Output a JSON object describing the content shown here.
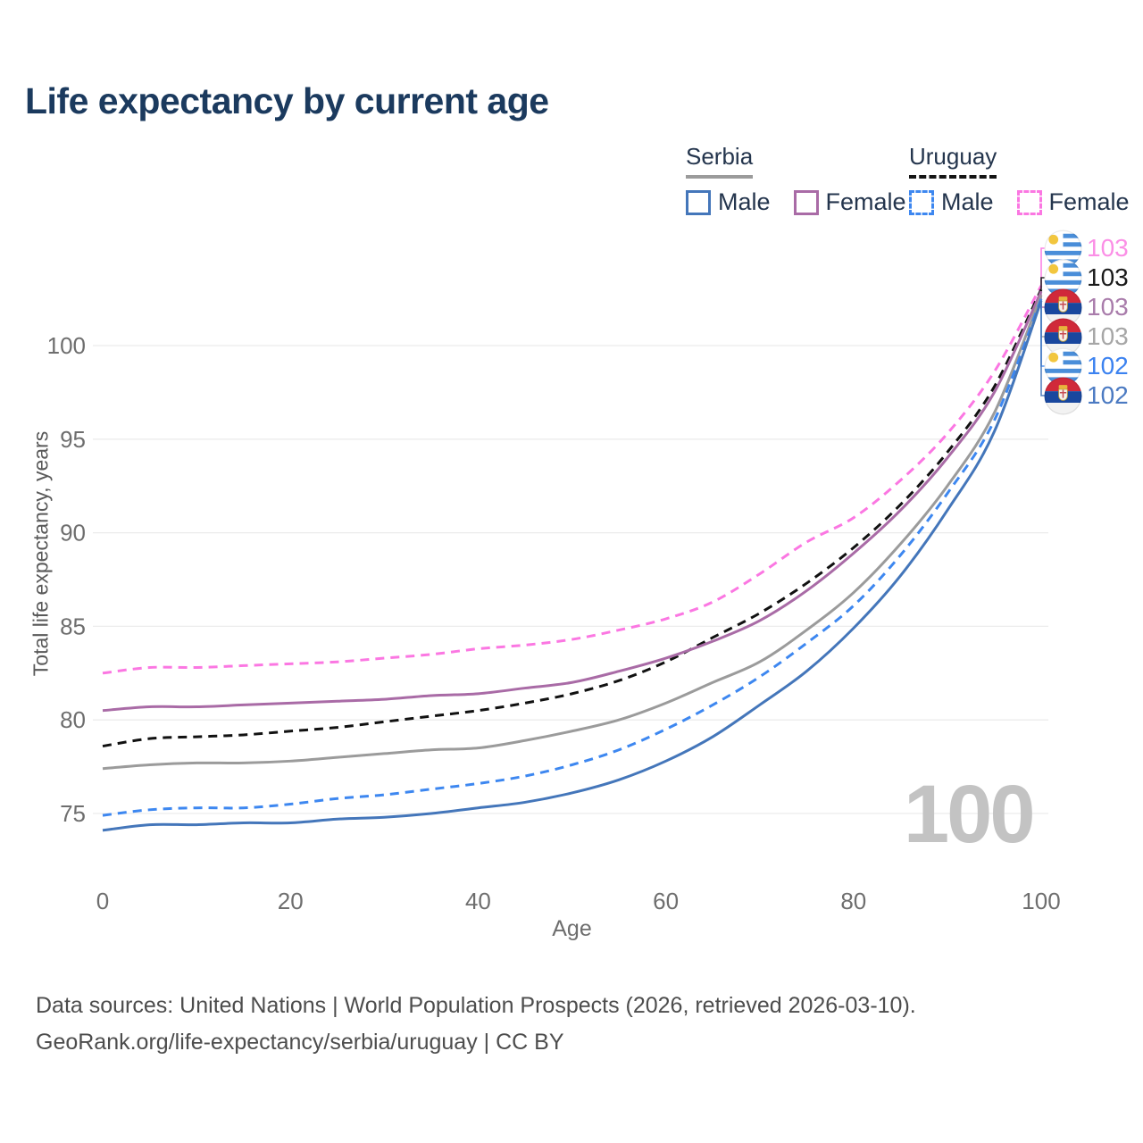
{
  "title": "Life expectancy by current age",
  "watermark": "100",
  "legend": {
    "groups": [
      {
        "country": "Serbia",
        "line_style": "solid",
        "underline_color": "#9b9b9b",
        "items": [
          {
            "label": "Male",
            "color": "#4476ba",
            "dashed": false
          },
          {
            "label": "Female",
            "color": "#a96ba6",
            "dashed": false
          }
        ]
      },
      {
        "country": "Uruguay",
        "line_style": "dashed",
        "underline_color": "#141414",
        "items": [
          {
            "label": "Male",
            "color": "#3d87f0",
            "dashed": true
          },
          {
            "label": "Female",
            "color": "#fb77e2",
            "dashed": true
          }
        ]
      }
    ]
  },
  "chart_data": {
    "type": "line",
    "title": "Life expectancy by current age",
    "xlabel": "Age",
    "ylabel": "Total life expectancy, years",
    "xlim": [
      0,
      100
    ],
    "ylim": [
      73.5,
      104.5
    ],
    "x_ticks": [
      0,
      20,
      40,
      60,
      80,
      100
    ],
    "y_ticks": [
      75,
      80,
      85,
      90,
      95,
      100
    ],
    "grid": "horizontal gridlines only",
    "legend_position": "top-right",
    "x": [
      0,
      5,
      10,
      15,
      20,
      25,
      30,
      35,
      40,
      45,
      50,
      55,
      60,
      65,
      70,
      75,
      80,
      85,
      90,
      95,
      100
    ],
    "series": [
      {
        "key": "uy_female",
        "name": "Uruguay Female",
        "country": "Uruguay",
        "dashed": true,
        "color": "#fb77e2",
        "end_label": "103",
        "values": [
          82.5,
          82.8,
          82.8,
          82.9,
          83.0,
          83.1,
          83.3,
          83.5,
          83.8,
          84.0,
          84.3,
          84.8,
          85.4,
          86.3,
          87.8,
          89.5,
          90.8,
          92.8,
          95.3,
          98.6,
          103.2
        ]
      },
      {
        "key": "uy_avg",
        "name": "Uruguay",
        "country": "Uruguay",
        "dashed": true,
        "color": "#111111",
        "end_label": "103",
        "values": [
          78.6,
          79.0,
          79.1,
          79.2,
          79.4,
          79.6,
          79.9,
          80.2,
          80.5,
          80.9,
          81.4,
          82.1,
          83.1,
          84.4,
          85.7,
          87.3,
          89.2,
          91.5,
          94.3,
          97.8,
          103.0
        ]
      },
      {
        "key": "rs_female",
        "name": "Serbia Female",
        "country": "Serbia",
        "dashed": false,
        "color": "#a96ba6",
        "end_label": "103",
        "values": [
          80.5,
          80.7,
          80.7,
          80.8,
          80.9,
          81.0,
          81.1,
          81.3,
          81.4,
          81.7,
          82.0,
          82.6,
          83.3,
          84.2,
          85.3,
          86.9,
          88.9,
          91.2,
          94.0,
          97.5,
          102.9
        ]
      },
      {
        "key": "rs_avg",
        "name": "Serbia",
        "country": "Serbia",
        "dashed": false,
        "color": "#9b9b9b",
        "end_label": "103",
        "values": [
          77.4,
          77.6,
          77.7,
          77.7,
          77.8,
          78.0,
          78.2,
          78.4,
          78.5,
          78.9,
          79.4,
          80.0,
          80.9,
          82.0,
          83.1,
          84.8,
          86.8,
          89.4,
          92.5,
          96.4,
          102.7
        ]
      },
      {
        "key": "uy_male",
        "name": "Uruguay Male",
        "country": "Uruguay",
        "dashed": true,
        "color": "#3d87f0",
        "end_label": "102",
        "values": [
          74.9,
          75.2,
          75.3,
          75.3,
          75.5,
          75.8,
          76.0,
          76.3,
          76.6,
          77.0,
          77.6,
          78.4,
          79.5,
          80.8,
          82.3,
          84.1,
          86.1,
          88.8,
          92.1,
          96.0,
          102.5
        ]
      },
      {
        "key": "rs_male",
        "name": "Serbia Male",
        "country": "Serbia",
        "dashed": false,
        "color": "#4476ba",
        "end_label": "102",
        "values": [
          74.1,
          74.4,
          74.4,
          74.5,
          74.5,
          74.7,
          74.8,
          75.0,
          75.3,
          75.6,
          76.1,
          76.8,
          77.8,
          79.1,
          80.8,
          82.6,
          84.9,
          87.7,
          91.2,
          95.4,
          102.4
        ]
      }
    ]
  },
  "end_labels": [
    {
      "series": "uy_female",
      "flag": "uruguay",
      "value": "103",
      "color": "#fb8fe6"
    },
    {
      "series": "uy_avg",
      "flag": "uruguay",
      "value": "103",
      "color": "#1a1a1a"
    },
    {
      "series": "rs_female",
      "flag": "serbia",
      "value": "103",
      "color": "#a97cab"
    },
    {
      "series": "rs_avg",
      "flag": "serbia",
      "value": "103",
      "color": "#a6a6a6"
    },
    {
      "series": "uy_male",
      "flag": "uruguay",
      "value": "102",
      "color": "#3b82f0"
    },
    {
      "series": "rs_male",
      "flag": "serbia",
      "value": "102",
      "color": "#4b7ac2"
    }
  ],
  "footer": {
    "line1": "Data sources: United Nations | World Population Prospects (2026, retrieved 2026-03-10).",
    "line2": "GeoRank.org/life-expectancy/serbia/uruguay | CC BY"
  }
}
